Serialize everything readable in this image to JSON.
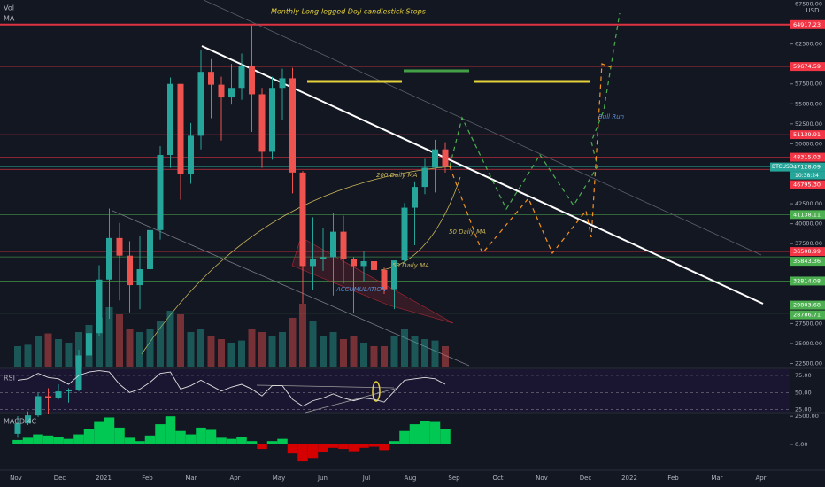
{
  "chart_data": {
    "type": "candlestick",
    "title": "Monthly Long-legged Doji candlestick Stops",
    "indicators": [
      "Vol",
      "MA"
    ],
    "currency": "USD",
    "symbol": "BTCUSD",
    "countdown": "10:38:24",
    "annotations": [
      "200 Daily MA",
      "50 Daily MA",
      "50 Daily MA",
      "ACCUMULATION",
      "Bull Run"
    ],
    "up_color": "#26a69a",
    "down_color": "#ef5350",
    "open": [
      13700,
      15000,
      16000,
      18400,
      18200,
      19000,
      19200,
      23500,
      26300,
      33000,
      38200,
      36000,
      32300,
      34300,
      39200,
      48600,
      57500,
      46200,
      51000,
      59000,
      57400,
      55800,
      57000,
      59800,
      56200,
      49000,
      57000,
      58200,
      46400,
      34700,
      35600,
      35800,
      39000,
      35600,
      34700,
      35300,
      34200,
      31800,
      35400,
      42000,
      44600,
      47000,
      49300
    ],
    "high": [
      15900,
      16500,
      18800,
      19400,
      19900,
      19400,
      24200,
      28400,
      34800,
      41900,
      40100,
      37800,
      38500,
      40900,
      49700,
      58300,
      57500,
      52600,
      61700,
      60600,
      58400,
      60000,
      61300,
      64800,
      57000,
      58400,
      59400,
      59500,
      46600,
      40800,
      39500,
      41300,
      41000,
      35800,
      36600,
      35100,
      34500,
      35400,
      42600,
      45300,
      48100,
      50500,
      50200
    ],
    "low": [
      13200,
      14800,
      15800,
      16200,
      18000,
      17600,
      19000,
      22000,
      25900,
      28100,
      30400,
      28900,
      29300,
      32300,
      38000,
      47000,
      43000,
      45000,
      49300,
      53200,
      50400,
      54900,
      55500,
      51500,
      47000,
      48000,
      53000,
      43800,
      30000,
      31700,
      34100,
      31000,
      32500,
      28800,
      32800,
      32100,
      31200,
      29300,
      35000,
      37300,
      43700,
      43900,
      46400
    ],
    "close": [
      15000,
      16000,
      18400,
      18200,
      19000,
      19200,
      23500,
      26300,
      33000,
      38200,
      36000,
      32300,
      34300,
      39200,
      48600,
      57500,
      46200,
      51000,
      59000,
      57400,
      55800,
      57000,
      59800,
      56200,
      49000,
      57000,
      58200,
      46400,
      34700,
      35600,
      35800,
      39000,
      35600,
      34700,
      35300,
      34200,
      31800,
      35400,
      42000,
      44600,
      47000,
      49300,
      47128.09
    ],
    "ylim": [
      22000,
      68000
    ],
    "yticks": [
      {
        "value": 22500,
        "label": "22500.00"
      },
      {
        "value": 25000,
        "label": "25000.00"
      },
      {
        "value": 27500,
        "label": "27500.00"
      },
      {
        "value": 37500,
        "label": "37500.00"
      },
      {
        "value": 40000,
        "label": "40000.00"
      },
      {
        "value": 42500,
        "label": "42500.00"
      },
      {
        "value": 50000,
        "label": "50000.00"
      },
      {
        "value": 52500,
        "label": "52500.00"
      },
      {
        "value": 55000,
        "label": "55000.00"
      },
      {
        "value": 57500,
        "label": "57500.00"
      },
      {
        "value": 62500,
        "label": "62500.00"
      },
      {
        "value": 67500,
        "label": "67500.00"
      }
    ],
    "levels": [
      {
        "value": 64917.23,
        "label": "64917.23",
        "color": "#f23645"
      },
      {
        "value": 59674.59,
        "label": "59674.59",
        "color": "#f23645"
      },
      {
        "value": 51139.91,
        "label": "51139.91",
        "color": "#f23645"
      },
      {
        "value": 48315.03,
        "label": "48315.03",
        "color": "#f23645"
      },
      {
        "value": 47128.09,
        "label": "47128.09",
        "color": "#26a69a"
      },
      {
        "value": 46795.3,
        "label": "46795.30",
        "color": "#f23645"
      },
      {
        "value": 41138.11,
        "label": "41138.11",
        "color": "#4caf50"
      },
      {
        "value": 36508.99,
        "label": "36508.99",
        "color": "#f23645"
      },
      {
        "value": 35843.36,
        "label": "35843.36",
        "color": "#4caf50"
      },
      {
        "value": 32814.08,
        "label": "32814.08",
        "color": "#4caf50"
      },
      {
        "value": 29803.68,
        "label": "29803.68",
        "color": "#4caf50"
      },
      {
        "value": 28786.71,
        "label": "28786.71",
        "color": "#4caf50"
      }
    ],
    "volume": [
      30,
      32,
      45,
      48,
      40,
      35,
      50,
      60,
      70,
      85,
      75,
      55,
      50,
      55,
      65,
      80,
      75,
      50,
      55,
      45,
      40,
      35,
      38,
      55,
      50,
      45,
      50,
      70,
      90,
      65,
      45,
      50,
      40,
      45,
      35,
      30,
      30,
      45,
      55,
      45,
      40,
      38,
      30
    ],
    "rsi": {
      "name": "RSI",
      "color": "#e0e0e0",
      "ylim": [
        22,
        84
      ],
      "yticks": [
        {
          "value": 25,
          "label": "25.00"
        },
        {
          "value": 50,
          "label": "50.00"
        },
        {
          "value": 75,
          "label": "75.00"
        }
      ],
      "values": [
        68,
        70,
        78,
        72,
        70,
        62,
        75,
        80,
        82,
        80,
        62,
        50,
        55,
        65,
        78,
        80,
        55,
        60,
        68,
        60,
        52,
        58,
        62,
        55,
        45,
        60,
        60,
        40,
        30,
        38,
        42,
        48,
        42,
        38,
        42,
        40,
        36,
        52,
        68,
        70,
        72,
        70,
        62
      ]
    },
    "macd": {
      "name": "MACD 4C",
      "ylim": [
        -2200,
        2750
      ],
      "yticks": [
        {
          "value": 0,
          "label": "0.00"
        },
        {
          "value": 2500,
          "label": "2500.00"
        }
      ],
      "values": [
        400,
        600,
        900,
        800,
        700,
        500,
        900,
        1400,
        2000,
        2400,
        1500,
        600,
        300,
        800,
        1800,
        2500,
        1200,
        900,
        1500,
        1300,
        600,
        500,
        700,
        300,
        -400,
        300,
        500,
        -800,
        -1500,
        -1200,
        -700,
        -300,
        -400,
        -600,
        -300,
        -200,
        -500,
        300,
        1200,
        1800,
        2100,
        2000,
        1400
      ]
    },
    "xticks": [
      "Nov",
      "Dec",
      "2021",
      "Feb",
      "Mar",
      "Apr",
      "May",
      "Jun",
      "Jul",
      "Aug",
      "Sep",
      "Oct",
      "Nov",
      "Dec",
      "2022",
      "Feb",
      "Mar",
      "Apr"
    ]
  }
}
